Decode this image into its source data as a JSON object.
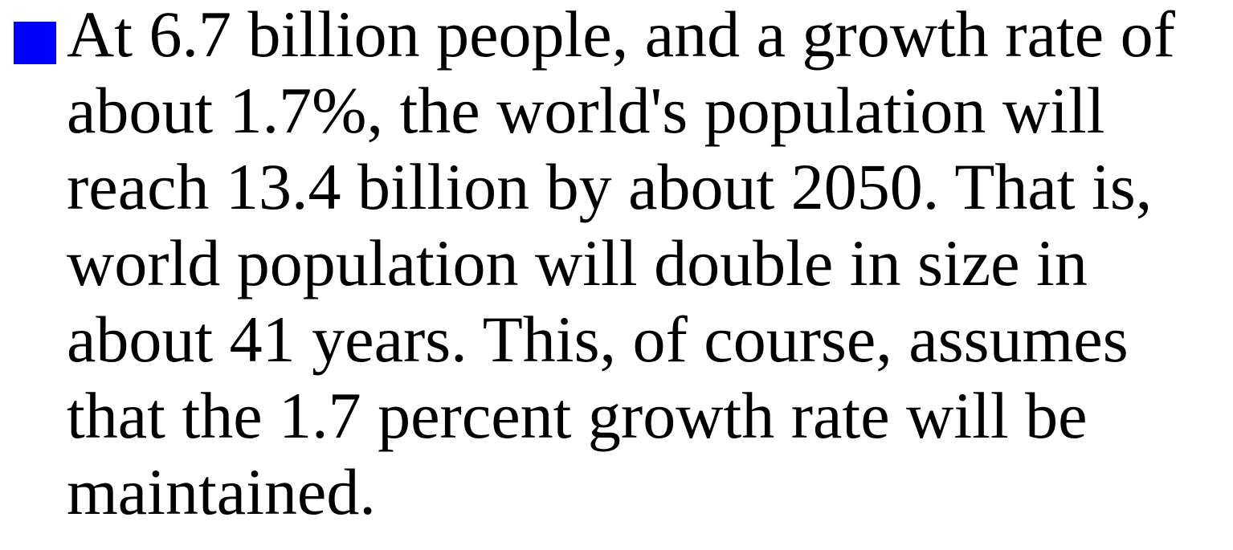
{
  "bullet": {
    "lines": [
      "At 6.7 billion people, and a growth rate of",
      "about 1.7%, the world's population will",
      "reach 13.4 billion by about 2050. That is,",
      "world population will double in size in",
      "about 41 years. This, of course, assumes",
      "that the 1.7 percent growth rate will be",
      "maintained."
    ]
  }
}
